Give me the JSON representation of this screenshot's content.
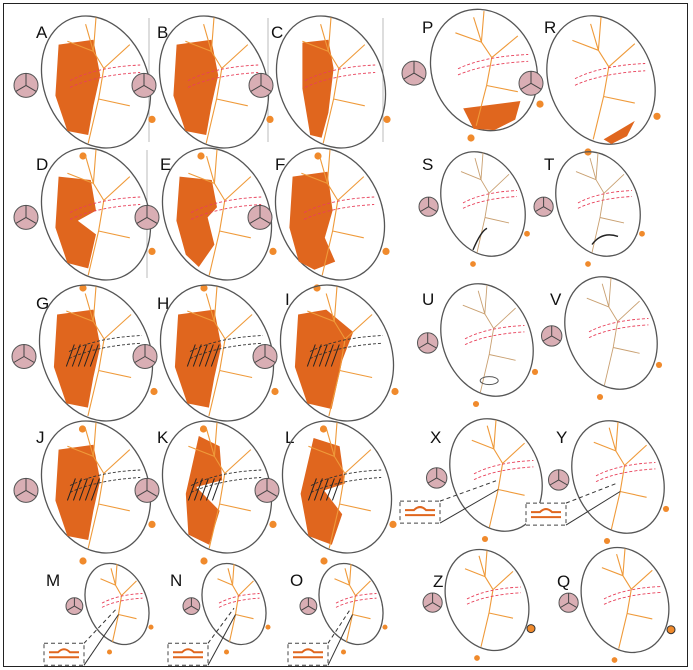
{
  "figure": {
    "panels": [
      {
        "label": "A"
      },
      {
        "label": "B"
      },
      {
        "label": "C"
      },
      {
        "label": "D"
      },
      {
        "label": "E"
      },
      {
        "label": "F"
      },
      {
        "label": "G"
      },
      {
        "label": "H"
      },
      {
        "label": "I"
      },
      {
        "label": "J"
      },
      {
        "label": "K"
      },
      {
        "label": "L"
      },
      {
        "label": "M"
      },
      {
        "label": "N"
      },
      {
        "label": "O"
      },
      {
        "label": "P"
      },
      {
        "label": "R"
      },
      {
        "label": "S"
      },
      {
        "label": "T"
      },
      {
        "label": "U"
      },
      {
        "label": "V"
      },
      {
        "label": "X"
      },
      {
        "label": "Y"
      },
      {
        "label": "Z"
      },
      {
        "label": "Q"
      }
    ],
    "colors": {
      "fill": "#e0661e",
      "vessel": "#ef9a3a",
      "outline": "#555555",
      "dashed": "#e8405a",
      "disc": "#d9aeb4",
      "node": "#f08a2c"
    }
  }
}
